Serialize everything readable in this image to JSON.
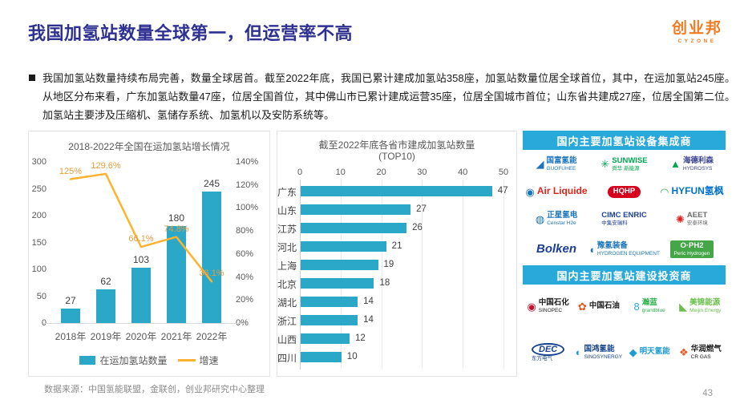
{
  "page": {
    "title": "我国加氢站数量全球第一，但运营率不高",
    "source_note": "数据来源：中国氢能联盟，金联创，创业邦研究中心整理",
    "page_number": "43",
    "brand": {
      "name": "创业邦",
      "sub": "CYZONE"
    }
  },
  "intro": {
    "bullet": "■",
    "text": "我国加氢站数量持续布局完善，数量全球居首。截至2022年底，我国已累计建成加氢站358座，加氢站数量位居全球首位，其中，在运加氢站245座。从地区分布来看，广东加氢站数量47座，位居全国首位，其中佛山市已累计建成运营35座，位居全国城市首位；山东省共建成27座，位居全国第二位。加氢站主要涉及压缩机、氢储存系统、加氢机以及安防系统等。"
  },
  "colors": {
    "bar": "#2ba7c8",
    "line": "#fdb32e",
    "line_label": "#e89c3e",
    "header": "#29a9da",
    "title": "#2e3192",
    "brand": "#f47b20"
  },
  "chart_data": [
    {
      "type": "bar",
      "title": "2018-2022年全国在运加氢站增长情况",
      "categories": [
        "2018年",
        "2019年",
        "2020年",
        "2021年",
        "2022年"
      ],
      "series": [
        {
          "name": "在运加氢站数量",
          "type": "bar",
          "axis": "left",
          "values": [
            27,
            62,
            103,
            180,
            245
          ]
        },
        {
          "name": "增速",
          "type": "line",
          "axis": "right",
          "values": [
            125,
            129.6,
            66.1,
            74.8,
            36.1
          ],
          "labels": [
            "125%",
            "129.6%",
            "66.1%",
            "74.8%",
            "36.1%"
          ]
        }
      ],
      "left_axis": {
        "min": 0,
        "max": 300,
        "step": 50,
        "ticks": [
          "0",
          "50",
          "100",
          "150",
          "200",
          "250",
          "300"
        ]
      },
      "right_axis": {
        "min": 0,
        "max": 140,
        "step": 20,
        "ticks": [
          "0%",
          "20%",
          "40%",
          "60%",
          "80%",
          "100%",
          "120%",
          "140%"
        ]
      },
      "legend_position": "bottom",
      "grid": false
    },
    {
      "type": "bar",
      "orientation": "horizontal",
      "title": "截至2022年底各省市建成加氢站数量",
      "subtitle": "(TOP10)",
      "categories": [
        "广东",
        "山东",
        "江苏",
        "河北",
        "上海",
        "北京",
        "湖北",
        "浙江",
        "山西",
        "四川"
      ],
      "values": [
        47,
        27,
        26,
        21,
        19,
        18,
        14,
        14,
        12,
        10
      ],
      "x_axis": {
        "min": 0,
        "max": 50,
        "step": 10,
        "ticks": [
          "0",
          "10",
          "20",
          "30",
          "40",
          "50"
        ]
      },
      "grid": true,
      "legend_position": "none"
    }
  ],
  "panel": {
    "sections": [
      {
        "header": "国内主要加氢站设备集成商",
        "logos": [
          {
            "id": "guofuhee",
            "icon": "◢",
            "icon_color": "#1b75bb",
            "lines": [
              "国富氢能",
              "GUOFUHEE"
            ],
            "color": "#1b75bb"
          },
          {
            "id": "sunwise",
            "icon": "✳",
            "icon_color": "#00a651",
            "lines": [
              "SUNWISE",
              "舜华 新能源"
            ],
            "color": "#00a651"
          },
          {
            "id": "hydrosys",
            "icon": "▲",
            "icon_color": "#00a651",
            "lines": [
              "海德利森",
              "HYDROSYS"
            ],
            "color": "#3d4391"
          },
          {
            "id": "air-liquide",
            "icon": "◉",
            "icon_color": "#1b75bb",
            "lines": [
              "Air Liquide"
            ],
            "color": "#e1251b",
            "style": "big"
          },
          {
            "id": "hqhp",
            "lines": [
              "HQHP"
            ],
            "color": "#ffffff",
            "bg": "#d6001c",
            "style": "pill"
          },
          {
            "id": "hyfun",
            "icon": "◠",
            "icon_color": "#39b54a",
            "lines": [
              "HYFUN氢枫"
            ],
            "color": "#0072ce",
            "style": "big"
          },
          {
            "id": "censtar",
            "icon": "◍",
            "icon_color": "#1b75bb",
            "lines": [
              "正星氢电",
              "Censtar H2e"
            ],
            "color": "#1b75bb"
          },
          {
            "id": "cimc-enric",
            "lines": [
              "CIMC ENRIC",
              "中集安瑞科"
            ],
            "color": "#1c3e93"
          },
          {
            "id": "aeet",
            "icon": "✺",
            "icon_color": "#e02020",
            "lines": [
              "AEET",
              "安泰环境"
            ],
            "color": "#6b6b6b"
          },
          {
            "id": "bolken",
            "lines": [
              "Bolken"
            ],
            "color": "#1c3e93",
            "style": "big-italic"
          },
          {
            "id": "yuqing-equipment",
            "icon": "◖",
            "icon_color": "#1b75bb",
            "lines": [
              "豫氢装备",
              "HYDROGEN EQUIPMENT"
            ],
            "color": "#1b75bb"
          },
          {
            "id": "peric-ph2",
            "lines": [
              "O·PH2",
              "Peric Hydrogen"
            ],
            "color": "#ffffff",
            "bg": "#45a648",
            "style": "box"
          }
        ]
      },
      {
        "header": "国内主要加氢站建设投资商",
        "logos": [
          {
            "id": "sinopec",
            "icon": "◉",
            "icon_color": "#c8102e",
            "lines": [
              "中国石化",
              "SINOPEC"
            ],
            "color": "#1a1a1a"
          },
          {
            "id": "cnpc",
            "icon": "✿",
            "icon_color": "#e8541e",
            "lines": [
              "中国石油"
            ],
            "color": "#1a1a1a"
          },
          {
            "id": "grandblue",
            "icon": "8",
            "icon_color": "#26a9e0",
            "lines": [
              "瀚蓝",
              "grandblue"
            ],
            "color": "#2bb34b"
          },
          {
            "id": "meijin",
            "icon": "◣",
            "icon_color": "#6abf4b",
            "lines": [
              "美锦能源",
              "Meijin Energy"
            ],
            "color": "#6abf4b"
          },
          {
            "id": "dec",
            "lines": [
              "DEC",
              "东方电气"
            ],
            "color": "#16448f",
            "style": "oval"
          },
          {
            "id": "sinosynergy",
            "icon": "◐",
            "icon_color": "#1f9cd1",
            "lines": [
              "国鸿氢能",
              "SINOSYNERGY"
            ],
            "color": "#16448f"
          },
          {
            "id": "mingtian",
            "icon": "◆",
            "icon_color": "#1f9cd1",
            "lines": [
              "明天氢能"
            ],
            "color": "#1f9cd1"
          },
          {
            "id": "crgas",
            "icon": "❖",
            "icon_color": "#f05a22",
            "lines": [
              "华润燃气",
              "CR GAS"
            ],
            "color": "#1a1a1a"
          }
        ]
      }
    ]
  }
}
